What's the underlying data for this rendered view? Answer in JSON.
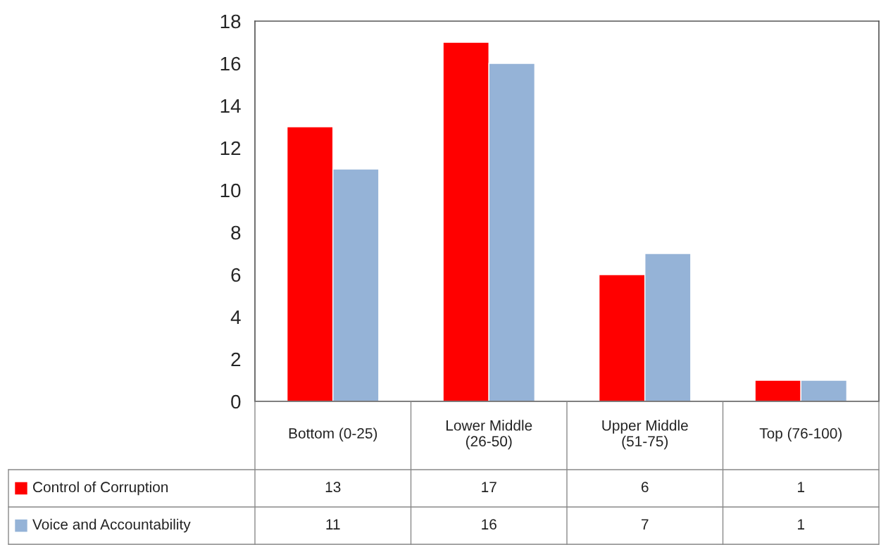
{
  "chart_data": {
    "type": "bar",
    "categories": [
      "Bottom (0-25)",
      "Lower Middle\n(26-50)",
      "Upper Middle\n(51-75)",
      "Top (76-100)"
    ],
    "series": [
      {
        "name": "Control of Corruption",
        "color": "#ff0000",
        "values": [
          13,
          17,
          6,
          1
        ]
      },
      {
        "name": "Voice and Accountability",
        "color": "#95b3d7",
        "values": [
          11,
          16,
          7,
          1
        ]
      }
    ],
    "ylim": [
      0,
      18
    ],
    "yticks": [
      0,
      2,
      4,
      6,
      8,
      10,
      12,
      14,
      16,
      18
    ],
    "grid": false,
    "data_labels": true,
    "legend": "bottom left"
  }
}
